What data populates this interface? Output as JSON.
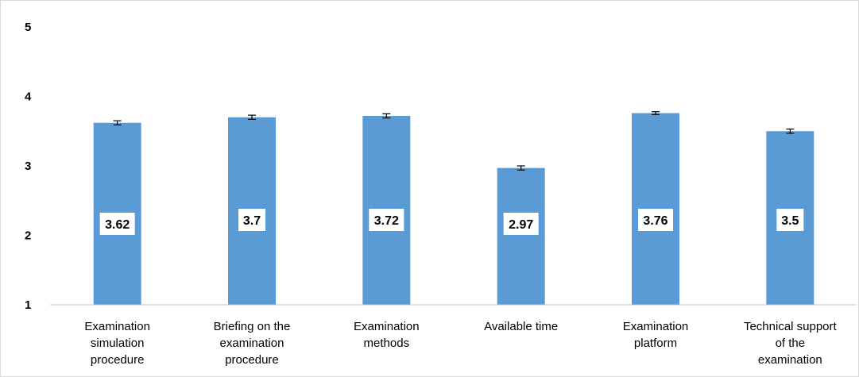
{
  "chart_data": {
    "type": "bar",
    "categories": [
      [
        "Examination",
        "simulation",
        "procedure"
      ],
      [
        "Briefing on the",
        "examination",
        "procedure"
      ],
      [
        "Examination",
        "methods"
      ],
      [
        "Available time"
      ],
      [
        "Examination",
        "platform"
      ],
      [
        "Technical support",
        "of the",
        "examination"
      ]
    ],
    "values": [
      3.62,
      3.7,
      3.72,
      2.97,
      3.76,
      3.5
    ],
    "data_labels": [
      "3.62",
      "3.7",
      "3.72",
      "2.97",
      "3.76",
      "3.5"
    ],
    "error_bars": [
      0.03,
      0.03,
      0.03,
      0.03,
      0.02,
      0.03
    ],
    "ylim": [
      1,
      5
    ],
    "yticks": [
      "1",
      "2",
      "3",
      "4",
      "5"
    ],
    "grid": false,
    "legend": "none",
    "bar_color": "#5b9bd5",
    "error_bar_color": "#000000"
  }
}
